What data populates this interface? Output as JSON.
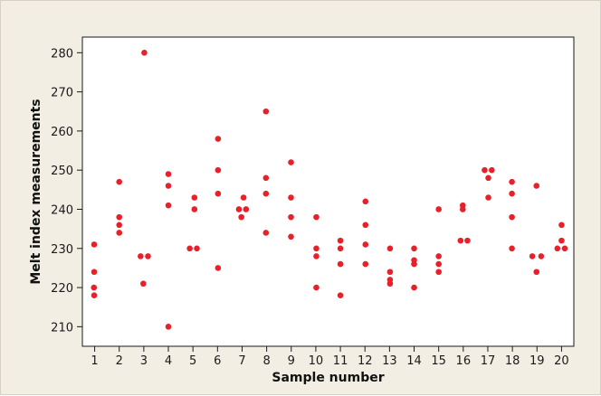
{
  "chart_data": {
    "type": "scatter",
    "title": "",
    "xlabel": "Sample number",
    "ylabel": "Melt index measurements",
    "xlim": [
      0.5,
      20.5
    ],
    "ylim": [
      205,
      284
    ],
    "x_ticks": [
      1,
      2,
      3,
      4,
      5,
      6,
      7,
      8,
      9,
      10,
      11,
      12,
      13,
      14,
      15,
      16,
      17,
      18,
      19,
      20
    ],
    "y_ticks": [
      210,
      220,
      230,
      240,
      250,
      260,
      270,
      280
    ],
    "grid": false,
    "legend": "none",
    "marker_color": "#e8202a",
    "points": [
      [
        0.98,
        231
      ],
      [
        0.98,
        224
      ],
      [
        0.97,
        220
      ],
      [
        0.98,
        218
      ],
      [
        2,
        247
      ],
      [
        2,
        238
      ],
      [
        2,
        236
      ],
      [
        2,
        234
      ],
      [
        3.02,
        280
      ],
      [
        2.87,
        228
      ],
      [
        3.17,
        228
      ],
      [
        2.98,
        221
      ],
      [
        4,
        249
      ],
      [
        4,
        246
      ],
      [
        4,
        241
      ],
      [
        4,
        210
      ],
      [
        5.06,
        243
      ],
      [
        5.06,
        240
      ],
      [
        4.87,
        230
      ],
      [
        5.16,
        230
      ],
      [
        6.02,
        258
      ],
      [
        6.02,
        250
      ],
      [
        6.02,
        244
      ],
      [
        6.02,
        225
      ],
      [
        7.06,
        243
      ],
      [
        6.87,
        240
      ],
      [
        7.16,
        240
      ],
      [
        6.97,
        238
      ],
      [
        7.97,
        265
      ],
      [
        7.97,
        248
      ],
      [
        7.97,
        244
      ],
      [
        7.97,
        234
      ],
      [
        8.99,
        252
      ],
      [
        8.99,
        243
      ],
      [
        8.99,
        238
      ],
      [
        8.99,
        233
      ],
      [
        10.02,
        238
      ],
      [
        10.02,
        230
      ],
      [
        10.02,
        228
      ],
      [
        10.02,
        220
      ],
      [
        11,
        232
      ],
      [
        11,
        230
      ],
      [
        11,
        226
      ],
      [
        11,
        218
      ],
      [
        12.02,
        242
      ],
      [
        12.02,
        236
      ],
      [
        12.02,
        231
      ],
      [
        12.02,
        226
      ],
      [
        13.02,
        230
      ],
      [
        13.02,
        224
      ],
      [
        13.02,
        222
      ],
      [
        13.02,
        221
      ],
      [
        14,
        230
      ],
      [
        14,
        227
      ],
      [
        14,
        226
      ],
      [
        14,
        220
      ],
      [
        15,
        240
      ],
      [
        15,
        228
      ],
      [
        15,
        226
      ],
      [
        15,
        224
      ],
      [
        15.98,
        241
      ],
      [
        15.98,
        240
      ],
      [
        15.89,
        232
      ],
      [
        16.17,
        232
      ],
      [
        16.87,
        250
      ],
      [
        17.16,
        250
      ],
      [
        17.02,
        248
      ],
      [
        17.02,
        243
      ],
      [
        17.98,
        247
      ],
      [
        17.98,
        244
      ],
      [
        17.98,
        238
      ],
      [
        17.98,
        230
      ],
      [
        18.98,
        246
      ],
      [
        18.81,
        228
      ],
      [
        19.17,
        228
      ],
      [
        18.98,
        224
      ],
      [
        20,
        236
      ],
      [
        20,
        232
      ],
      [
        19.83,
        230
      ],
      [
        20.13,
        230
      ]
    ]
  }
}
